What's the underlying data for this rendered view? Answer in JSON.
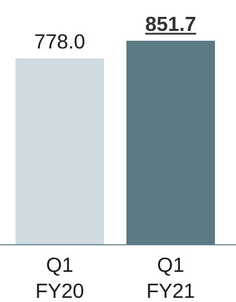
{
  "chart_data": {
    "type": "bar",
    "categories": [
      [
        "Q1",
        "FY20"
      ],
      [
        "Q1",
        "FY21"
      ]
    ],
    "values": [
      778.0,
      851.7
    ],
    "value_labels": [
      "778.0",
      "851.7"
    ],
    "highlight_index": 1,
    "highlight_style": "bold-underline",
    "bar_colors": [
      "#cfdbe0",
      "#5b7a83"
    ],
    "baseline_color": "#5b7a83",
    "ylim": [
      0,
      851.7
    ],
    "grid": false,
    "legend": "none",
    "title": "",
    "xlabel": "",
    "ylabel": ""
  }
}
